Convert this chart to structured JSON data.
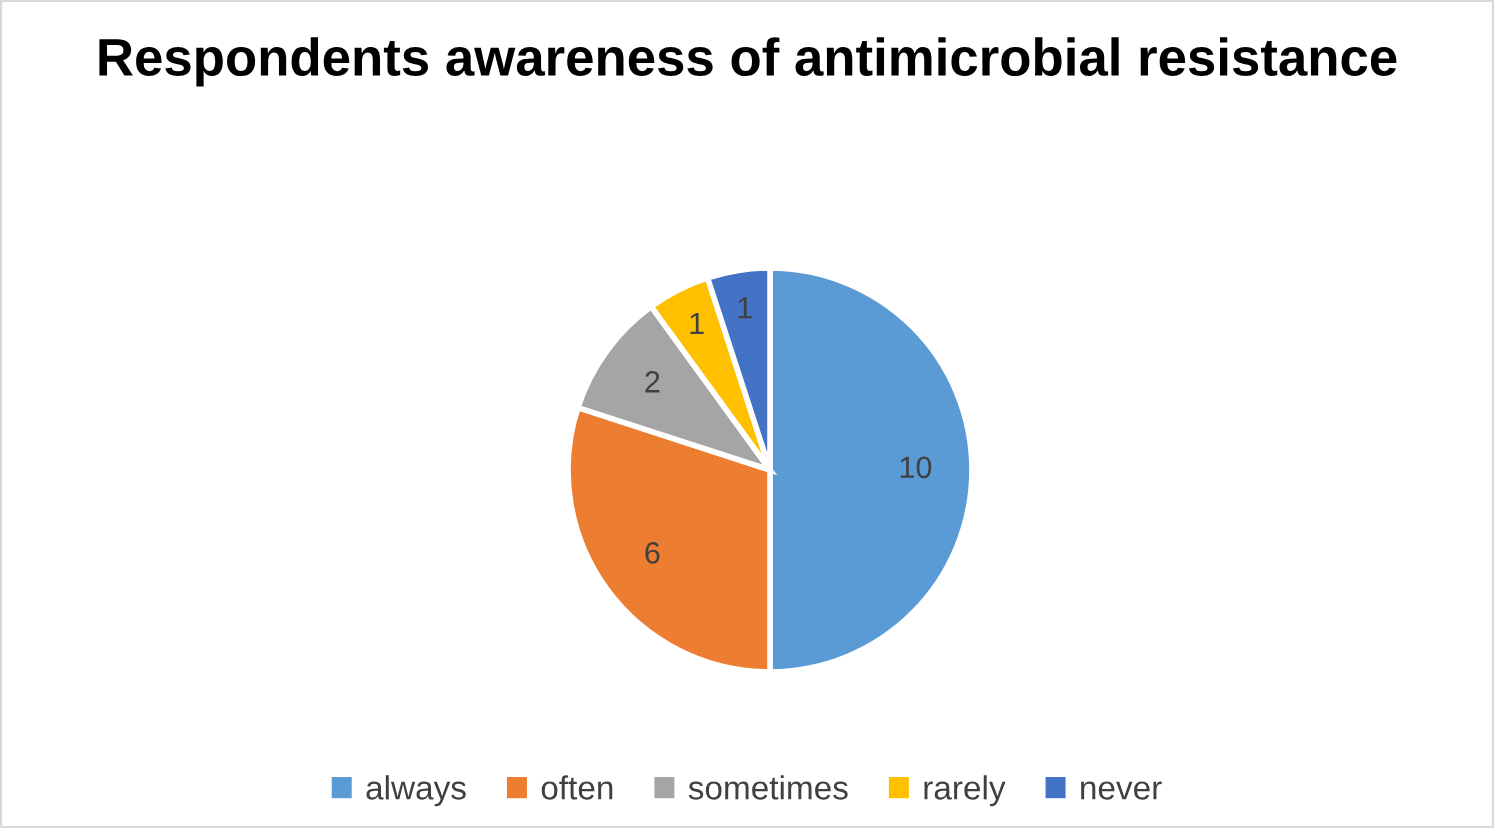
{
  "chart_data": {
    "type": "pie",
    "title": "Respondents awareness of antimicrobial resistance",
    "categories": [
      "always",
      "often",
      "sometimes",
      "rarely",
      "never"
    ],
    "values": [
      10,
      6,
      2,
      1,
      1
    ],
    "colors": [
      "#5b9bd5",
      "#ed7d31",
      "#a5a5a5",
      "#ffc000",
      "#4472c4"
    ],
    "data_labels": true,
    "legend": "bottom"
  }
}
